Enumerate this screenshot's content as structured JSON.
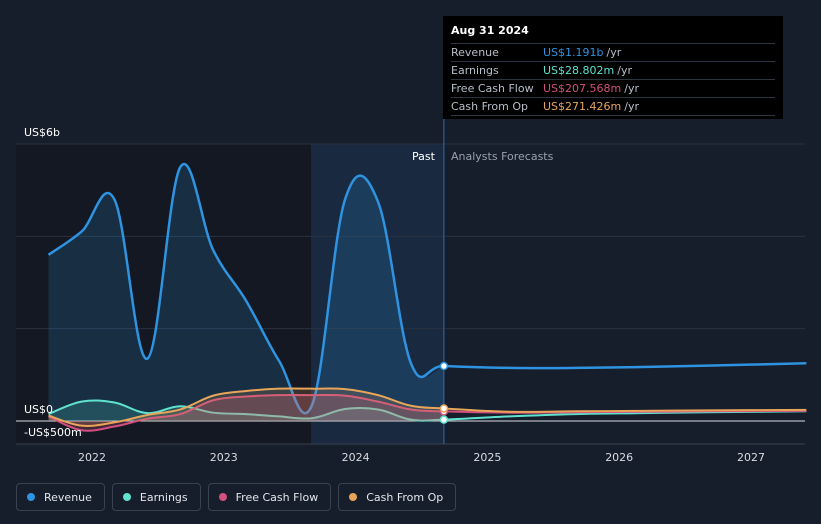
{
  "chart_data": {
    "type": "line",
    "x_ticks": [
      2022,
      2023,
      2024,
      2025,
      2026,
      2027
    ],
    "y_labels": [
      "US$6b",
      "US$0",
      "-US$500m"
    ],
    "ylim": [
      -500,
      6000
    ],
    "grid": true,
    "period_labels": {
      "past": "Past",
      "forecast": "Analysts Forecasts"
    },
    "divider_x": 2024.67,
    "series": [
      {
        "name": "Revenue",
        "color": "#2e93e0",
        "x": [
          2021.67,
          2021.92,
          2022.17,
          2022.42,
          2022.67,
          2022.92,
          2023.17,
          2023.42,
          2023.67,
          2023.92,
          2024.17,
          2024.42,
          2024.67,
          2025.17,
          2025.67,
          2026.17,
          2026.67,
          2027.42
        ],
        "y": [
          3600,
          4100,
          4800,
          1350,
          5500,
          3700,
          2600,
          1300,
          350,
          4800,
          4750,
          1250,
          1191,
          1150,
          1150,
          1170,
          1200,
          1250
        ]
      },
      {
        "name": "Earnings",
        "color": "#5fe3cf",
        "x": [
          2021.67,
          2021.92,
          2022.17,
          2022.42,
          2022.67,
          2022.92,
          2023.17,
          2023.42,
          2023.67,
          2023.92,
          2024.17,
          2024.42,
          2024.67,
          2025.17,
          2025.67,
          2026.17,
          2026.67,
          2027.42
        ],
        "y": [
          150,
          420,
          400,
          170,
          320,
          180,
          150,
          100,
          60,
          260,
          250,
          30,
          29,
          100,
          150,
          170,
          190,
          210
        ]
      },
      {
        "name": "Free Cash Flow",
        "color": "#d2507f",
        "x": [
          2021.67,
          2021.92,
          2022.17,
          2022.42,
          2022.67,
          2022.92,
          2023.17,
          2023.42,
          2023.67,
          2023.92,
          2024.17,
          2024.42,
          2024.67,
          2025.17,
          2025.67,
          2026.17,
          2026.67,
          2027.42
        ],
        "y": [
          100,
          -200,
          -120,
          50,
          150,
          450,
          530,
          560,
          560,
          550,
          420,
          250,
          208,
          180,
          190,
          200,
          210,
          220
        ]
      },
      {
        "name": "Cash From Op",
        "color": "#e8a55a",
        "x": [
          2021.67,
          2021.92,
          2022.17,
          2022.42,
          2022.67,
          2022.92,
          2023.17,
          2023.42,
          2023.67,
          2023.92,
          2024.17,
          2024.42,
          2024.67,
          2025.17,
          2025.67,
          2026.17,
          2026.67,
          2027.42
        ],
        "y": [
          120,
          -100,
          -30,
          130,
          250,
          550,
          650,
          700,
          700,
          690,
          560,
          330,
          271,
          200,
          210,
          220,
          230,
          240
        ]
      }
    ]
  },
  "tooltip": {
    "date": "Aug 31 2024",
    "rows": [
      {
        "label": "Revenue",
        "value": "US$1.191b",
        "unit": "/yr",
        "color": "#2e93e0"
      },
      {
        "label": "Earnings",
        "value": "US$28.802m",
        "unit": "/yr",
        "color": "#5fe3cf"
      },
      {
        "label": "Free Cash Flow",
        "value": "US$207.568m",
        "unit": "/yr",
        "color": "#d2507f"
      },
      {
        "label": "Cash From Op",
        "value": "US$271.426m",
        "unit": "/yr",
        "color": "#e8a55a"
      }
    ]
  },
  "legend": [
    {
      "label": "Revenue",
      "color": "#2e93e0"
    },
    {
      "label": "Earnings",
      "color": "#5fe3cf"
    },
    {
      "label": "Free Cash Flow",
      "color": "#d2507f"
    },
    {
      "label": "Cash From Op",
      "color": "#e8a55a"
    }
  ]
}
